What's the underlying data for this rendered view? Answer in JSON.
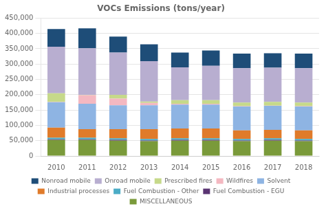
{
  "chart_data": {
    "type": "bar",
    "title": "VOCs Emissions (tons/year)",
    "categories": [
      "2010",
      "2011",
      "2012",
      "2013",
      "2014",
      "2015",
      "2016",
      "2017",
      "2018"
    ],
    "series": [
      {
        "name": "MISCELLANEOUS",
        "color": "#7a9a3a",
        "values": [
          52000,
          52000,
          50000,
          48000,
          50000,
          50000,
          48000,
          50000,
          48000
        ]
      },
      {
        "name": "Fuel Combustion - EGU",
        "color": "#5a3472",
        "values": [
          2500,
          2500,
          2500,
          2500,
          2500,
          2500,
          2500,
          2500,
          2500
        ]
      },
      {
        "name": "Fuel Combustion - Other",
        "color": "#4bacc6",
        "values": [
          5000,
          5000,
          5000,
          5000,
          5000,
          5000,
          5000,
          5000,
          5000
        ]
      },
      {
        "name": "Industrial processes",
        "color": "#e07b2a",
        "values": [
          33000,
          28000,
          30000,
          32000,
          32000,
          32000,
          28000,
          28000,
          28000
        ]
      },
      {
        "name": "Solvent",
        "color": "#8eb4e3",
        "values": [
          83000,
          83000,
          78000,
          78000,
          78000,
          78000,
          78000,
          78000,
          78000
        ]
      },
      {
        "name": "Wildfires",
        "color": "#f4b8c1",
        "values": [
          1000,
          28000,
          22000,
          8000,
          3000,
          3000,
          1000,
          1000,
          1000
        ]
      },
      {
        "name": "Prescribed fires",
        "color": "#c6d98a",
        "values": [
          28000,
          1000,
          12000,
          4000,
          12000,
          12000,
          12000,
          12000,
          12000
        ]
      },
      {
        "name": "Onroad mobile",
        "color": "#b8aed0",
        "values": [
          152000,
          152000,
          138000,
          132000,
          107000,
          112000,
          112000,
          112000,
          112000
        ]
      },
      {
        "name": "Nonroad mobile",
        "color": "#1e4d78",
        "values": [
          58000,
          65000,
          52000,
          55000,
          48000,
          50000,
          48000,
          47000,
          48000
        ]
      }
    ],
    "ylim": [
      0,
      450000
    ],
    "yticks": [
      0,
      {
        "value": 50000,
        "label": "50,000"
      },
      {
        "value": 100000,
        "label": "100,000"
      },
      {
        "value": 150000,
        "label": "150,000"
      },
      {
        "value": 200000,
        "label": "200,000"
      },
      {
        "value": 250000,
        "label": "250,000"
      },
      {
        "value": 300000,
        "label": "300,000"
      },
      {
        "value": 350000,
        "label": "350,000"
      },
      {
        "value": 400000,
        "label": "400,000"
      },
      {
        "value": 450000,
        "label": "450,000"
      }
    ],
    "stacked": true,
    "grid": true,
    "legend": "bottom"
  }
}
